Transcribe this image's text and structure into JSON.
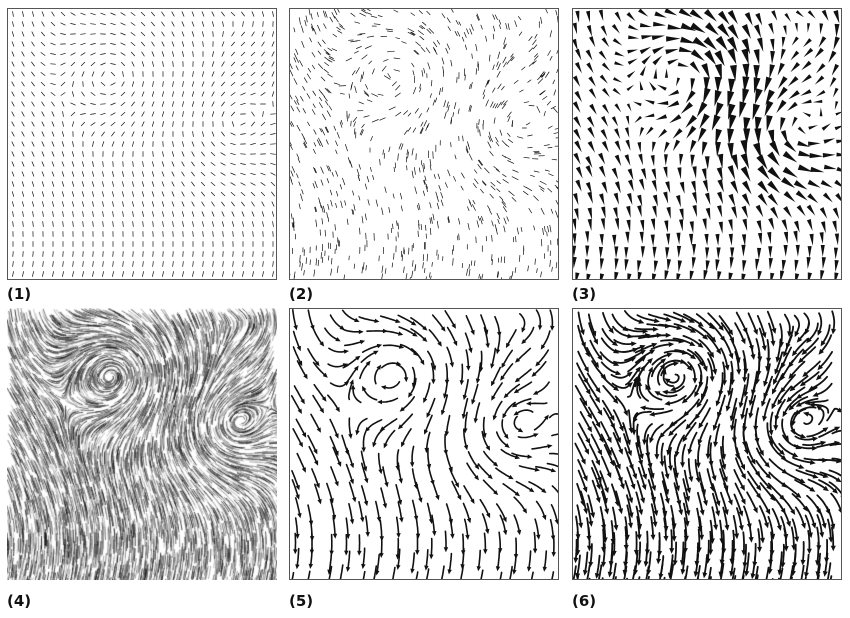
{
  "panels": [
    {
      "label": "(1)",
      "style": "tiny-arrows-grid"
    },
    {
      "label": "(2)",
      "style": "tiny-arrows-jitter"
    },
    {
      "label": "(3)",
      "style": "wedge-glyphs"
    },
    {
      "label": "(4)",
      "style": "line-integral-convolution"
    },
    {
      "label": "(5)",
      "style": "curved-streamlet-arrows"
    },
    {
      "label": "(6)",
      "style": "dense-streamlet-arrows"
    }
  ],
  "colors": {
    "ink": "#111111",
    "frame": "#555555",
    "background": "#ffffff"
  }
}
